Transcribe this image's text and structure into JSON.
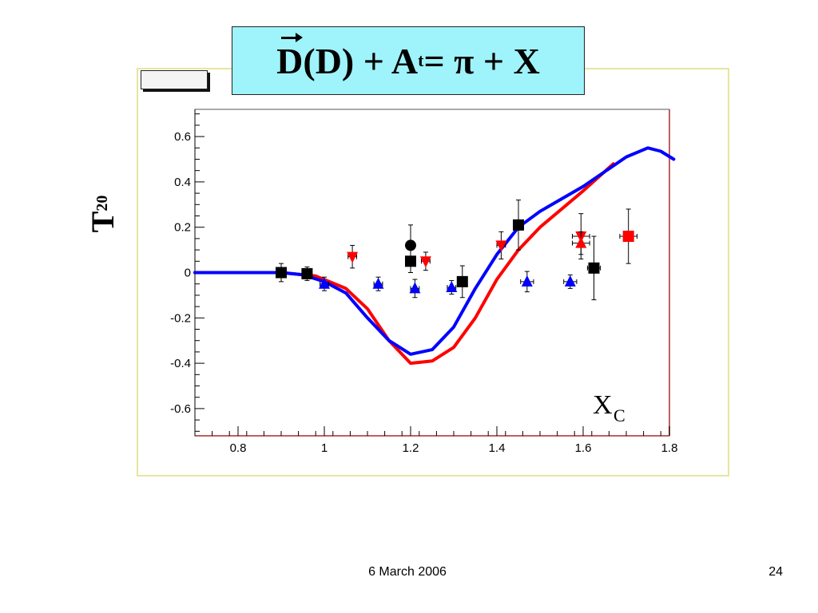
{
  "slide": {
    "date": "6 March 2006",
    "page_number": "24"
  },
  "title": {
    "D1": "D",
    "rest": "(D) + A",
    "sub": "t",
    "tail": " = π + X"
  },
  "chart_data": {
    "type": "scatter",
    "ylabel": "T",
    "ylabel_sub": "20",
    "xlabel": "X",
    "xlabel_sub": "C",
    "xlim": [
      0.7,
      1.8
    ],
    "ylim": [
      -0.72,
      0.72
    ],
    "x_ticks": [
      "0.8",
      "1",
      "1.2",
      "1.4",
      "1.6",
      "1.8"
    ],
    "x_tick_values": [
      0.8,
      1.0,
      1.2,
      1.4,
      1.6,
      1.8
    ],
    "y_ticks": [
      "0.6",
      "0.4",
      "0.2",
      "0",
      "-0.2",
      "-0.4",
      "-0.6"
    ],
    "y_tick_values": [
      0.6,
      0.4,
      0.2,
      0.0,
      -0.2,
      -0.4,
      -0.6
    ],
    "colors": {
      "black": "#000000",
      "red": "#ff0000",
      "blue": "#0000ff"
    },
    "curves": [
      {
        "color": "#ff0000",
        "points": [
          [
            0.7,
            0.0
          ],
          [
            0.9,
            0.0
          ],
          [
            0.98,
            -0.015
          ],
          [
            1.05,
            -0.07
          ],
          [
            1.1,
            -0.16
          ],
          [
            1.15,
            -0.3
          ],
          [
            1.2,
            -0.4
          ],
          [
            1.25,
            -0.39
          ],
          [
            1.3,
            -0.33
          ],
          [
            1.35,
            -0.2
          ],
          [
            1.4,
            -0.03
          ],
          [
            1.45,
            0.1
          ],
          [
            1.5,
            0.2
          ],
          [
            1.6,
            0.36
          ],
          [
            1.67,
            0.48
          ]
        ]
      },
      {
        "color": "#0000ff",
        "points": [
          [
            0.7,
            0.0
          ],
          [
            0.9,
            0.0
          ],
          [
            0.95,
            -0.01
          ],
          [
            1.0,
            -0.04
          ],
          [
            1.05,
            -0.09
          ],
          [
            1.1,
            -0.2
          ],
          [
            1.15,
            -0.3
          ],
          [
            1.2,
            -0.36
          ],
          [
            1.25,
            -0.34
          ],
          [
            1.3,
            -0.24
          ],
          [
            1.35,
            -0.07
          ],
          [
            1.4,
            0.08
          ],
          [
            1.45,
            0.2
          ],
          [
            1.5,
            0.27
          ],
          [
            1.6,
            0.38
          ],
          [
            1.7,
            0.51
          ],
          [
            1.75,
            0.55
          ],
          [
            1.78,
            0.535
          ],
          [
            1.81,
            0.5
          ]
        ]
      }
    ],
    "series": [
      {
        "marker": "square",
        "color": "#000000",
        "points": [
          {
            "x": 0.9,
            "y": 0.0,
            "ey": 0.04,
            "ex": 0.01
          },
          {
            "x": 0.96,
            "y": -0.005,
            "ey": 0.03,
            "ex": 0.01
          },
          {
            "x": 1.2,
            "y": 0.05,
            "ey": 0.05,
            "ex": 0.0
          },
          {
            "x": 1.32,
            "y": -0.04,
            "ey": 0.07,
            "ex": 0.01
          },
          {
            "x": 1.45,
            "y": 0.21,
            "ey": 0.11,
            "ex": 0.01
          },
          {
            "x": 1.625,
            "y": 0.02,
            "ey": 0.14,
            "ex": 0.015
          }
        ]
      },
      {
        "marker": "circle",
        "color": "#000000",
        "points": [
          {
            "x": 1.2,
            "y": 0.12,
            "ey": 0.09,
            "ex": 0.0
          }
        ]
      },
      {
        "marker": "triangle-down",
        "color": "#ff0000",
        "points": [
          {
            "x": 1.065,
            "y": 0.07,
            "ey": 0.05,
            "ex": 0.01
          },
          {
            "x": 1.235,
            "y": 0.05,
            "ey": 0.04,
            "ex": 0.01
          },
          {
            "x": 1.41,
            "y": 0.12,
            "ey": 0.06,
            "ex": 0.01
          },
          {
            "x": 1.595,
            "y": 0.16,
            "ey": 0.1,
            "ex": 0.02
          }
        ]
      },
      {
        "marker": "triangle-up",
        "color": "#ff0000",
        "points": [
          {
            "x": 1.595,
            "y": 0.13,
            "ey": 0.05,
            "ex": 0.02
          }
        ]
      },
      {
        "marker": "square",
        "color": "#ff0000",
        "points": [
          {
            "x": 1.705,
            "y": 0.16,
            "ey": 0.12,
            "ex": 0.02
          }
        ]
      },
      {
        "marker": "triangle-up",
        "color": "#0000ff",
        "points": [
          {
            "x": 1.0,
            "y": -0.05,
            "ey": 0.03,
            "ex": 0.01
          },
          {
            "x": 1.125,
            "y": -0.05,
            "ey": 0.03,
            "ex": 0.01
          },
          {
            "x": 1.21,
            "y": -0.07,
            "ey": 0.04,
            "ex": 0.01
          },
          {
            "x": 1.295,
            "y": -0.065,
            "ey": 0.03,
            "ex": 0.01
          },
          {
            "x": 1.47,
            "y": -0.04,
            "ey": 0.045,
            "ex": 0.015
          },
          {
            "x": 1.57,
            "y": -0.04,
            "ey": 0.03,
            "ex": 0.015
          }
        ]
      }
    ]
  }
}
